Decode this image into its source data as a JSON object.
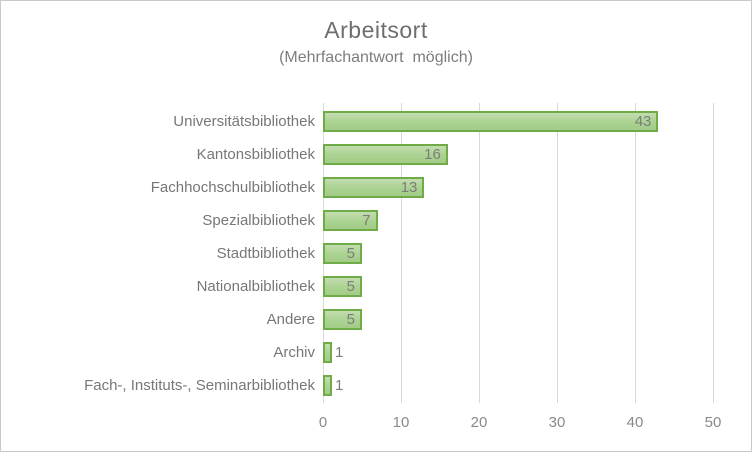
{
  "chart": {
    "title": "Arbeitsort",
    "subtitle": "(Mehrfachantwort  möglich)",
    "colors": {
      "bar_fill": "#aad290",
      "bar_fill_light": "#c3ddb0",
      "bar_border": "#6fab47",
      "gridline": "#d9d9d9",
      "title_text": "#6e6e6e",
      "label_text": "#777777",
      "value_text": "#7c7c7c",
      "tick_text": "#8a8a8a",
      "frame_border": "#c9c9c9"
    }
  },
  "chart_data": {
    "type": "bar",
    "orientation": "horizontal",
    "title": "Arbeitsort",
    "subtitle": "(Mehrfachantwort  möglich)",
    "categories": [
      "Universitätsbibliothek",
      "Kantonsbibliothek",
      "Fachhochschulbibliothek",
      "Spezialbibliothek",
      "Stadtbibliothek",
      "Nationalbibliothek",
      "Andere",
      "Archiv",
      "Fach-, Instituts-, Seminarbibliothek"
    ],
    "values": [
      43,
      16,
      13,
      7,
      5,
      5,
      5,
      1,
      1
    ],
    "xlabel": "",
    "ylabel": "",
    "xlim": [
      0,
      50
    ],
    "xticks": [
      0,
      10,
      20,
      30,
      40,
      50
    ],
    "grid": true,
    "legend": false,
    "data_labels": true,
    "data_label_inside_threshold": 3
  }
}
